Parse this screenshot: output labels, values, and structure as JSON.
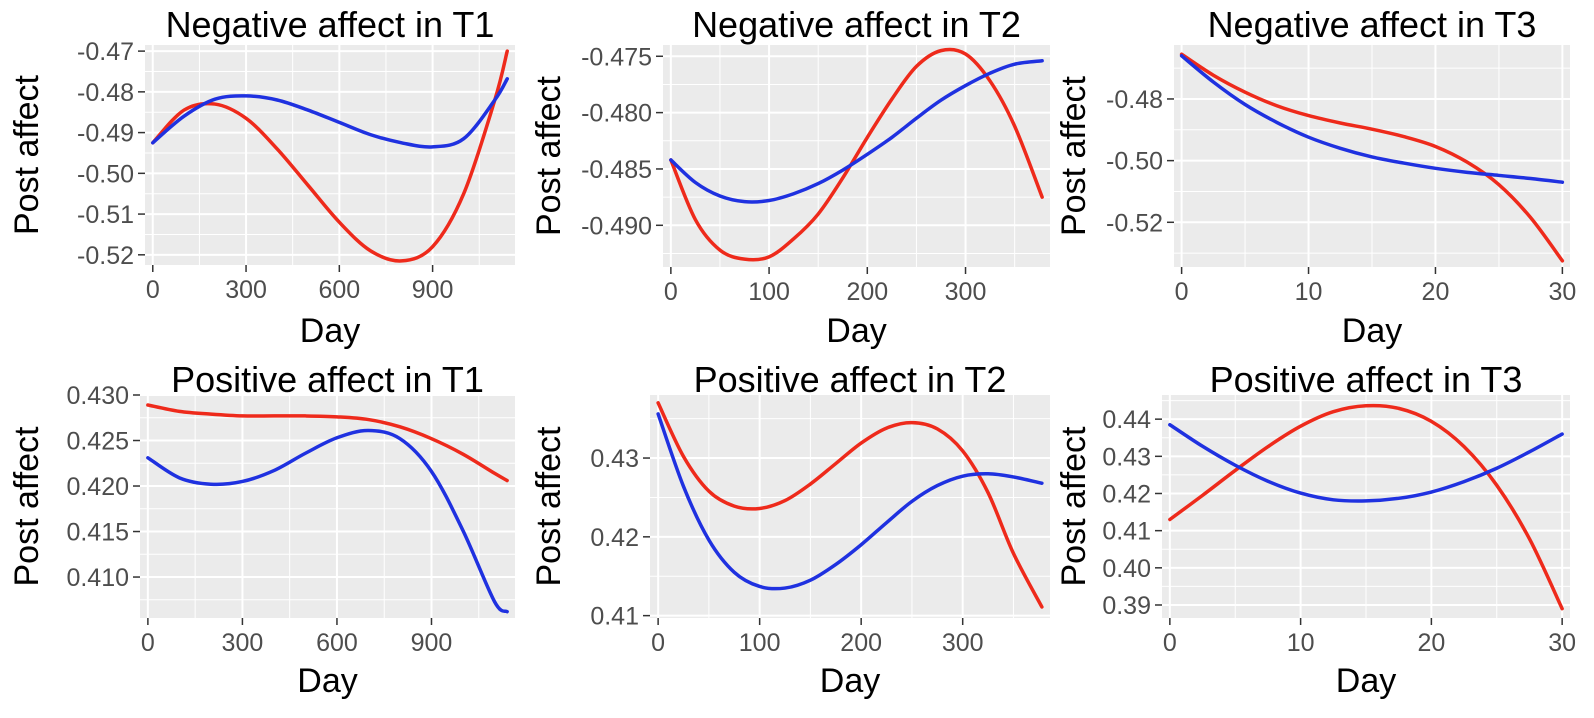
{
  "colors": {
    "red": "#ee2a1b",
    "blue": "#1f31e0",
    "panel": "#ebebeb",
    "grid": "#ffffff"
  },
  "chart_data": [
    {
      "type": "line",
      "title": "Negative affect in T1",
      "xlabel": "Day",
      "ylabel": "Post affect",
      "xlim": [
        -25,
        1165
      ],
      "ylim": [
        -0.5225,
        -0.4685
      ],
      "xticks": [
        0,
        300,
        600,
        900
      ],
      "xtick_labels": [
        "0",
        "300",
        "600",
        "900"
      ],
      "yticks": [
        -0.52,
        -0.51,
        -0.5,
        -0.49,
        -0.48,
        -0.47
      ],
      "ytick_labels": [
        "-0.52",
        "-0.51",
        "-0.50",
        "-0.49",
        "-0.48",
        "-0.47"
      ],
      "series": [
        {
          "name": "red",
          "color": "#ee2a1b",
          "x": [
            0,
            100,
            200,
            300,
            400,
            500,
            600,
            700,
            800,
            900,
            1000,
            1100,
            1140
          ],
          "y": [
            -0.4925,
            -0.4845,
            -0.483,
            -0.4865,
            -0.494,
            -0.503,
            -0.512,
            -0.519,
            -0.5215,
            -0.518,
            -0.505,
            -0.482,
            -0.47
          ]
        },
        {
          "name": "blue",
          "color": "#1f31e0",
          "x": [
            0,
            100,
            200,
            300,
            400,
            500,
            600,
            700,
            800,
            900,
            1000,
            1100,
            1140
          ],
          "y": [
            -0.4925,
            -0.486,
            -0.4818,
            -0.481,
            -0.482,
            -0.4845,
            -0.4875,
            -0.4905,
            -0.4925,
            -0.4935,
            -0.4915,
            -0.482,
            -0.4768
          ]
        }
      ]
    },
    {
      "type": "line",
      "title": "Negative affect in T2",
      "xlabel": "Day",
      "ylabel": "Post affect",
      "xlim": [
        -8,
        386
      ],
      "ylim": [
        -0.4937,
        -0.474
      ],
      "xticks": [
        0,
        100,
        200,
        300
      ],
      "xtick_labels": [
        "0",
        "100",
        "200",
        "300"
      ],
      "yticks": [
        -0.49,
        -0.485,
        -0.48,
        -0.475
      ],
      "ytick_labels": [
        "-0.490",
        "-0.485",
        "-0.480",
        "-0.475"
      ],
      "series": [
        {
          "name": "red",
          "color": "#ee2a1b",
          "x": [
            0,
            25,
            50,
            75,
            100,
            125,
            150,
            175,
            200,
            225,
            250,
            275,
            300,
            325,
            350,
            378
          ],
          "y": [
            -0.4842,
            -0.4895,
            -0.4922,
            -0.493,
            -0.4928,
            -0.4912,
            -0.489,
            -0.4858,
            -0.4822,
            -0.4788,
            -0.4759,
            -0.4745,
            -0.4748,
            -0.4772,
            -0.4812,
            -0.4875
          ]
        },
        {
          "name": "blue",
          "color": "#1f31e0",
          "x": [
            0,
            25,
            50,
            75,
            100,
            125,
            150,
            175,
            200,
            225,
            250,
            275,
            300,
            325,
            350,
            378
          ],
          "y": [
            -0.4842,
            -0.4862,
            -0.4874,
            -0.4879,
            -0.4878,
            -0.4872,
            -0.4863,
            -0.4851,
            -0.4837,
            -0.4822,
            -0.4805,
            -0.4789,
            -0.4776,
            -0.4765,
            -0.4757,
            -0.4754
          ]
        }
      ]
    },
    {
      "type": "line",
      "title": "Negative affect in T3",
      "xlabel": "Day",
      "ylabel": "Post affect",
      "xlim": [
        -0.6,
        30.6
      ],
      "ylim": [
        -0.5345,
        -0.4625
      ],
      "xticks": [
        0,
        10,
        20,
        30
      ],
      "xtick_labels": [
        "0",
        "10",
        "20",
        "30"
      ],
      "yticks": [
        -0.52,
        -0.5,
        -0.48
      ],
      "ytick_labels": [
        "-0.52",
        "-0.50",
        "-0.48"
      ],
      "series": [
        {
          "name": "red",
          "color": "#ee2a1b",
          "x": [
            0,
            2.5,
            5,
            7.5,
            10,
            12.5,
            15,
            17.5,
            20,
            22.5,
            25,
            27.5,
            30
          ],
          "y": [
            -0.4655,
            -0.4723,
            -0.4778,
            -0.4822,
            -0.4854,
            -0.4878,
            -0.4898,
            -0.4922,
            -0.4954,
            -0.5005,
            -0.5078,
            -0.5185,
            -0.5325
          ]
        },
        {
          "name": "blue",
          "color": "#1f31e0",
          "x": [
            0,
            2.5,
            5,
            7.5,
            10,
            12.5,
            15,
            17.5,
            20,
            22.5,
            25,
            27.5,
            30
          ],
          "y": [
            -0.466,
            -0.4745,
            -0.4818,
            -0.4876,
            -0.4924,
            -0.496,
            -0.4988,
            -0.5008,
            -0.5025,
            -0.5038,
            -0.5048,
            -0.5058,
            -0.507
          ]
        }
      ]
    },
    {
      "type": "line",
      "title": "Positive affect in T1",
      "xlabel": "Day",
      "ylabel": "Post affect",
      "xlim": [
        -25,
        1165
      ],
      "ylim": [
        0.4055,
        0.43
      ],
      "xticks": [
        0,
        300,
        600,
        900
      ],
      "xtick_labels": [
        "0",
        "300",
        "600",
        "900"
      ],
      "yticks": [
        0.41,
        0.415,
        0.42,
        0.425,
        0.43
      ],
      "ytick_labels": [
        "0.410",
        "0.415",
        "0.420",
        "0.425",
        "0.430"
      ],
      "series": [
        {
          "name": "red",
          "color": "#ee2a1b",
          "x": [
            0,
            100,
            200,
            300,
            400,
            500,
            600,
            700,
            800,
            900,
            1000,
            1100,
            1140
          ],
          "y": [
            0.4289,
            0.4282,
            0.4279,
            0.4277,
            0.4277,
            0.4277,
            0.4276,
            0.4273,
            0.4265,
            0.4252,
            0.4235,
            0.4214,
            0.4206
          ]
        },
        {
          "name": "blue",
          "color": "#1f31e0",
          "x": [
            0,
            100,
            200,
            300,
            400,
            500,
            600,
            700,
            800,
            900,
            1000,
            1100,
            1140
          ],
          "y": [
            0.4231,
            0.4209,
            0.4202,
            0.4205,
            0.4217,
            0.4236,
            0.4253,
            0.4261,
            0.4252,
            0.4216,
            0.4151,
            0.4073,
            0.4062
          ]
        }
      ]
    },
    {
      "type": "line",
      "title": "Positive affect in T2",
      "xlabel": "Day",
      "ylabel": "Post affect",
      "xlim": [
        -8,
        386
      ],
      "ylim": [
        0.4097,
        0.438
      ],
      "xticks": [
        0,
        100,
        200,
        300
      ],
      "xtick_labels": [
        "0",
        "100",
        "200",
        "300"
      ],
      "yticks": [
        0.41,
        0.42,
        0.43
      ],
      "ytick_labels": [
        "0.41",
        "0.42",
        "0.43"
      ],
      "series": [
        {
          "name": "red",
          "color": "#ee2a1b",
          "x": [
            0,
            25,
            50,
            75,
            100,
            125,
            150,
            175,
            200,
            225,
            250,
            275,
            300,
            325,
            350,
            378
          ],
          "y": [
            0.437,
            0.4302,
            0.4258,
            0.4239,
            0.4236,
            0.4246,
            0.4267,
            0.4293,
            0.4319,
            0.4338,
            0.4345,
            0.4337,
            0.4309,
            0.4256,
            0.4179,
            0.4111
          ]
        },
        {
          "name": "blue",
          "color": "#1f31e0",
          "x": [
            0,
            25,
            50,
            75,
            100,
            125,
            150,
            175,
            200,
            225,
            250,
            275,
            300,
            325,
            350,
            378
          ],
          "y": [
            0.4356,
            0.4264,
            0.4196,
            0.4155,
            0.4137,
            0.4135,
            0.4145,
            0.4165,
            0.419,
            0.4218,
            0.4245,
            0.4265,
            0.4277,
            0.428,
            0.4276,
            0.4268
          ]
        }
      ]
    },
    {
      "type": "line",
      "title": "Positive affect in T3",
      "xlabel": "Day",
      "ylabel": "Post affect",
      "xlim": [
        -0.6,
        30.6
      ],
      "ylim": [
        0.3865,
        0.4465
      ],
      "xticks": [
        0,
        10,
        20,
        30
      ],
      "xtick_labels": [
        "0",
        "10",
        "20",
        "30"
      ],
      "yticks": [
        0.39,
        0.4,
        0.41,
        0.42,
        0.43,
        0.44
      ],
      "ytick_labels": [
        "0.39",
        "0.40",
        "0.41",
        "0.42",
        "0.43",
        "0.44"
      ],
      "series": [
        {
          "name": "red",
          "color": "#ee2a1b",
          "x": [
            0,
            2.5,
            5,
            7.5,
            10,
            12.5,
            15,
            17.5,
            20,
            22.5,
            25,
            27.5,
            30
          ],
          "y": [
            0.413,
            0.4195,
            0.4262,
            0.4326,
            0.4381,
            0.442,
            0.4436,
            0.4429,
            0.4394,
            0.4326,
            0.4222,
            0.4078,
            0.389
          ]
        },
        {
          "name": "blue",
          "color": "#1f31e0",
          "x": [
            0,
            2.5,
            5,
            7.5,
            10,
            12.5,
            15,
            17.5,
            20,
            22.5,
            25,
            27.5,
            30
          ],
          "y": [
            0.4385,
            0.4327,
            0.4276,
            0.4233,
            0.4201,
            0.4183,
            0.418,
            0.4187,
            0.4204,
            0.4232,
            0.4268,
            0.4312,
            0.436
          ]
        }
      ]
    }
  ]
}
